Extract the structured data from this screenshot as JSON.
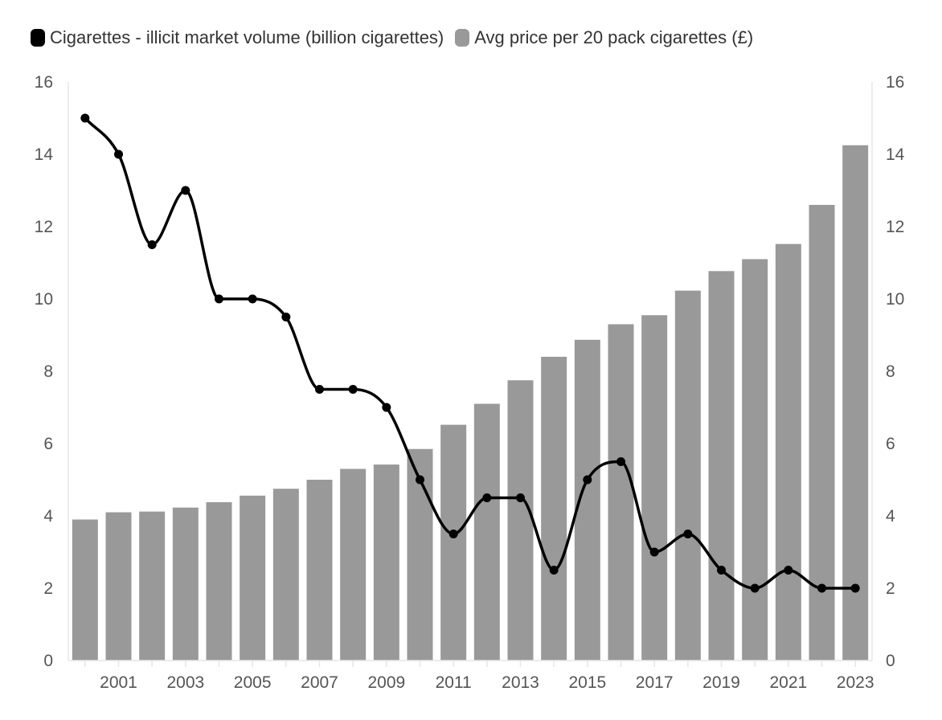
{
  "legend": {
    "line_label": "Cigarettes - illicit market volume (billion cigarettes)",
    "bar_label": "Avg price per 20 pack cigarettes (£)"
  },
  "colors": {
    "line": "#000000",
    "bars": "#999999",
    "axis_text": "#555555",
    "axis_line": "#e6e6e6"
  },
  "chart_data": {
    "type": "bar",
    "title": "",
    "x": [
      2000,
      2001,
      2002,
      2003,
      2004,
      2005,
      2006,
      2007,
      2008,
      2009,
      2010,
      2011,
      2012,
      2013,
      2014,
      2015,
      2016,
      2017,
      2018,
      2019,
      2020,
      2021,
      2022,
      2023
    ],
    "x_tick_labels": [
      "2001",
      "2003",
      "2005",
      "2007",
      "2009",
      "2011",
      "2013",
      "2015",
      "2017",
      "2019",
      "2021",
      "2023"
    ],
    "series": [
      {
        "name": "Cigarettes - illicit market volume (billion cigarettes)",
        "type": "line",
        "axis": "left",
        "values": [
          15,
          14,
          11.5,
          13,
          10,
          10,
          9.5,
          7.5,
          7.5,
          7,
          5,
          3.5,
          4.5,
          4.5,
          2.5,
          5,
          5.5,
          3,
          3.5,
          2.5,
          2,
          2.5,
          2,
          2
        ]
      },
      {
        "name": "Avg price per 20 pack cigarettes (£)",
        "type": "bar",
        "axis": "right",
        "values": [
          3.9,
          4.1,
          4.12,
          4.23,
          4.38,
          4.56,
          4.75,
          5.0,
          5.3,
          5.42,
          5.85,
          6.52,
          7.1,
          7.75,
          8.4,
          8.87,
          9.3,
          9.55,
          10.23,
          10.77,
          11.1,
          11.52,
          12.6,
          14.25
        ]
      }
    ],
    "y_left": {
      "ylim": [
        0,
        16
      ],
      "ticks": [
        0,
        2,
        4,
        6,
        8,
        10,
        12,
        14,
        16
      ]
    },
    "y_right": {
      "ylim": [
        0,
        16
      ],
      "ticks": [
        0,
        2,
        4,
        6,
        8,
        10,
        12,
        14,
        16
      ]
    },
    "grid": false,
    "legend_position": "top-left"
  }
}
